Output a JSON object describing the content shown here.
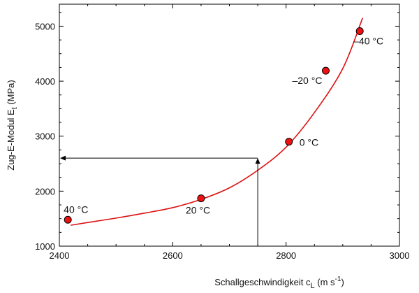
{
  "chart_data": {
    "type": "scatter",
    "xlabel_main": "Schallgeschwindigkeit c",
    "xlabel_sub": "L",
    "xlabel_unit": " (m s",
    "xlabel_sup": "-1",
    "xlabel_close": ")",
    "ylabel_main": "Zug-E-Modul E",
    "ylabel_sub": "t",
    "ylabel_unit": " (MPa)",
    "xlim": [
      2400,
      3000
    ],
    "ylim": [
      1000,
      5400
    ],
    "x_ticks": [
      2400,
      2600,
      2800,
      3000
    ],
    "x_tick_labels": [
      "2400",
      "2600",
      "2800",
      "3000"
    ],
    "y_ticks": [
      1000,
      2000,
      3000,
      4000,
      5000
    ],
    "y_tick_labels": [
      "1000",
      "2000",
      "3000",
      "4000",
      "5000"
    ],
    "points": [
      {
        "x": 2415,
        "y": 1480,
        "label": "40 °C"
      },
      {
        "x": 2650,
        "y": 1870,
        "label": "20 °C"
      },
      {
        "x": 2805,
        "y": 2900,
        "label": "0 °C"
      },
      {
        "x": 2870,
        "y": 4190,
        "label": "–20 °C"
      },
      {
        "x": 2930,
        "y": 4910,
        "label": "–40 °C"
      }
    ],
    "fit_curve": [
      [
        2420,
        1380
      ],
      [
        2450,
        1430
      ],
      [
        2500,
        1510
      ],
      [
        2550,
        1600
      ],
      [
        2600,
        1700
      ],
      [
        2650,
        1850
      ],
      [
        2700,
        2060
      ],
      [
        2750,
        2380
      ],
      [
        2800,
        2800
      ],
      [
        2850,
        3430
      ],
      [
        2900,
        4230
      ],
      [
        2935,
        5150
      ]
    ],
    "guide_x": 2750,
    "guide_y": 2600,
    "colors": {
      "curve": "#dd1111",
      "marker_fill": "#ee1111",
      "marker_edge": "#000000",
      "axis": "#000000"
    }
  }
}
